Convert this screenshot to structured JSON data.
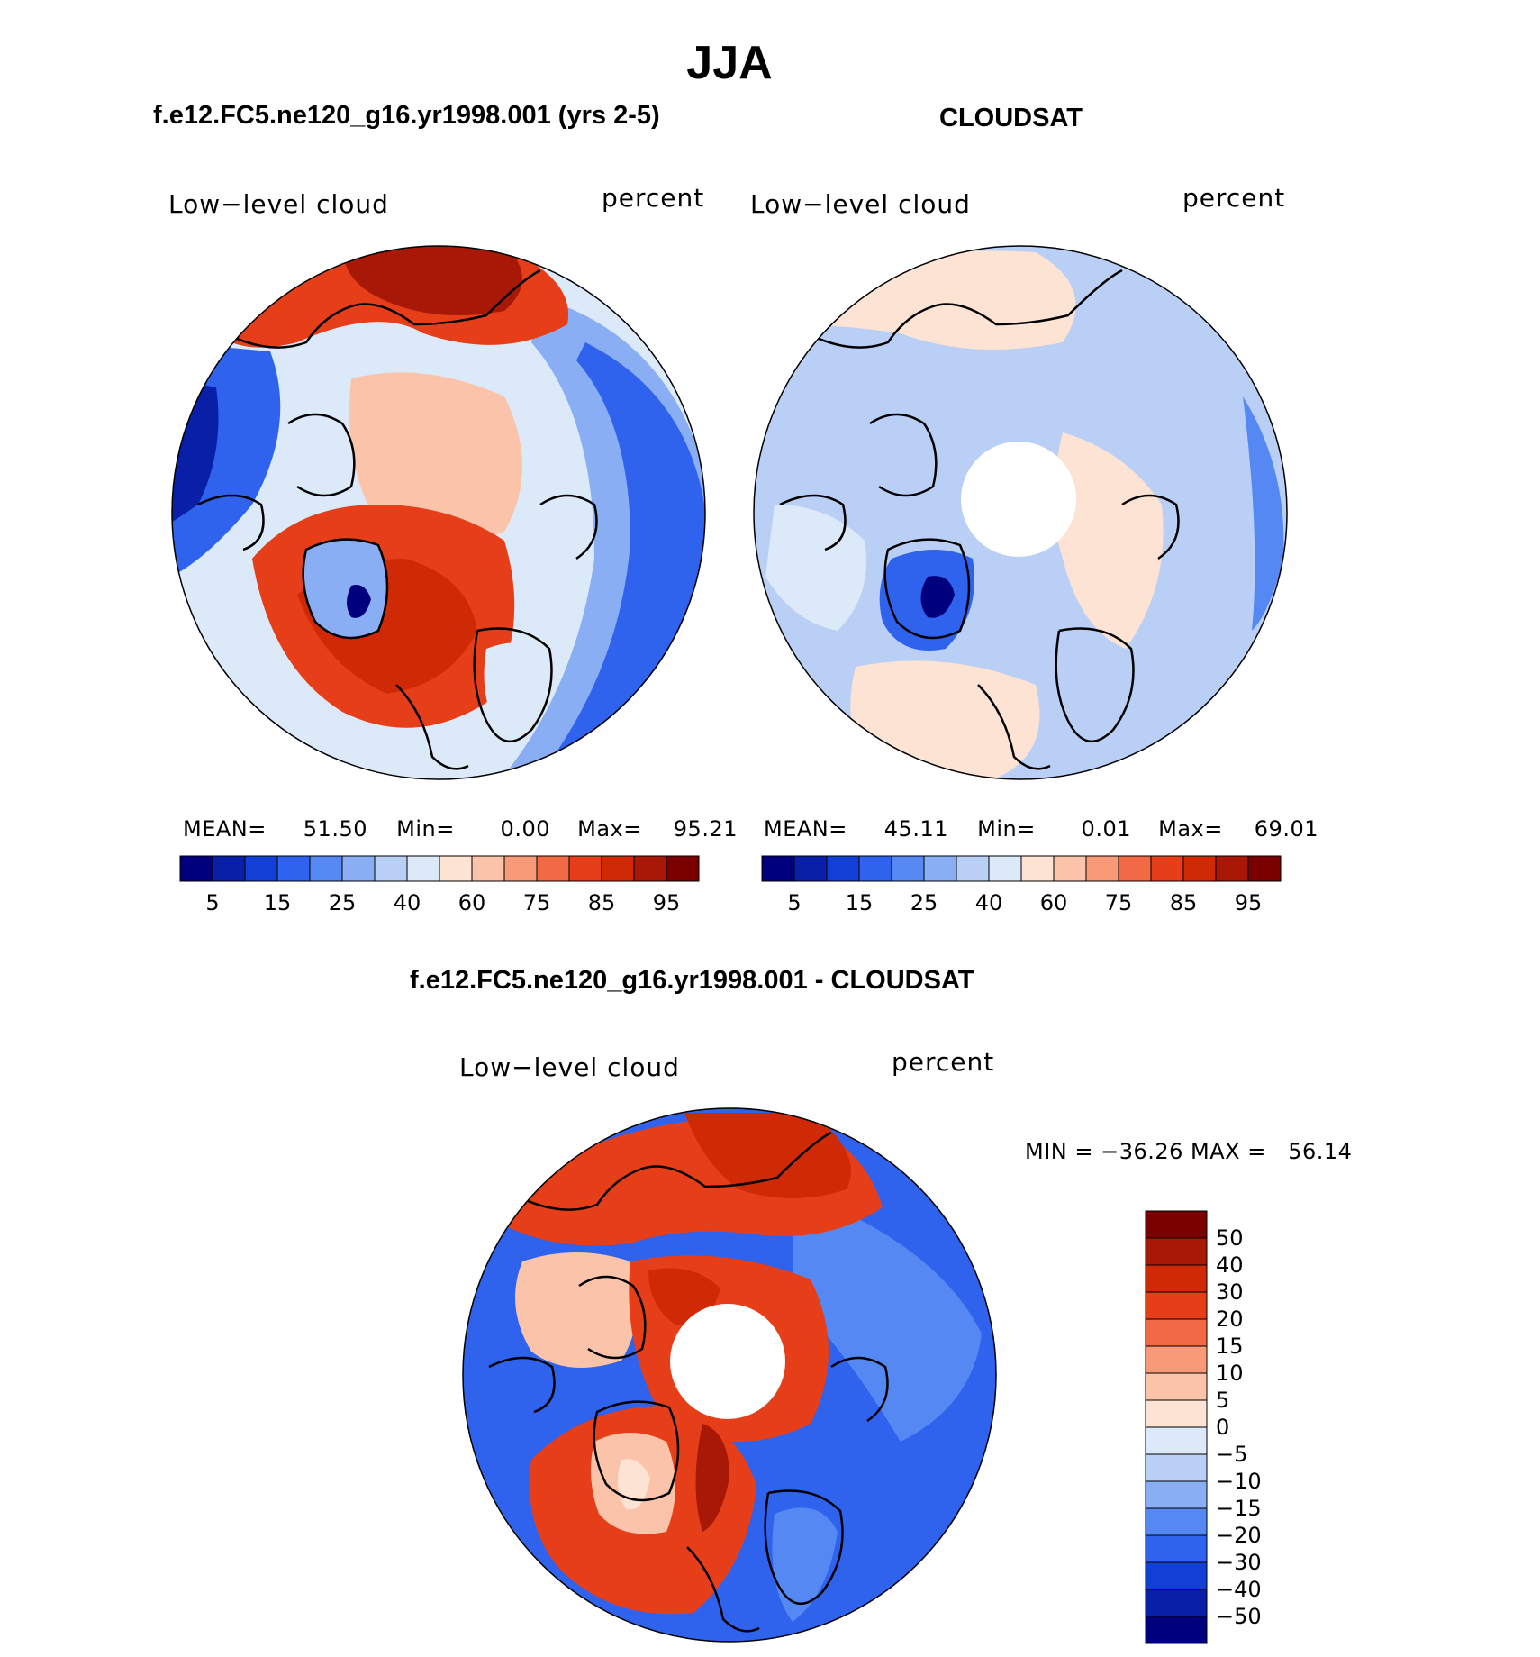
{
  "page_title": "JJA",
  "colors": {
    "model_scale": [
      "#00007f",
      "#0a1fa8",
      "#1340d4",
      "#2f63ee",
      "#5588f2",
      "#8aaef4",
      "#b9cff5",
      "#dce9f8",
      "#fde3d3",
      "#fbc3aa",
      "#f89a77",
      "#f26a45",
      "#e63e18",
      "#cf2a05",
      "#a81806",
      "#7a0000"
    ],
    "diff_scale": [
      "#00007f",
      "#0a1fa8",
      "#1340d4",
      "#2f63ee",
      "#5588f2",
      "#8aaef4",
      "#b9cff5",
      "#dce9f8",
      "#fde3d3",
      "#fbc3aa",
      "#f89a77",
      "#f26a45",
      "#e63e18",
      "#cf2a05",
      "#a81806",
      "#7a0000"
    ],
    "coastline": "#000000"
  },
  "panels": [
    {
      "title": "f.e12.FC5.ne120_g16.yr1998.001 (yrs 2-5)",
      "variable_label": "Low−level cloud",
      "units_label": "percent",
      "stats": {
        "mean_label": "MEAN=",
        "mean": "51.50",
        "min_label": "Min=",
        "min": "0.00",
        "max_label": "Max=",
        "max": "95.21"
      },
      "colorbar_ticks": [
        "5",
        "15",
        "25",
        "40",
        "60",
        "75",
        "85",
        "95"
      ]
    },
    {
      "title": "CLOUDSAT",
      "variable_label": "Low−level cloud",
      "units_label": "percent",
      "stats": {
        "mean_label": "MEAN=",
        "mean": "45.11",
        "min_label": "Min=",
        "min": "0.01",
        "max_label": "Max=",
        "max": "69.01"
      },
      "colorbar_ticks": [
        "5",
        "15",
        "25",
        "40",
        "60",
        "75",
        "85",
        "95"
      ]
    },
    {
      "title": "f.e12.FC5.ne120_g16.yr1998.001 - CLOUDSAT",
      "variable_label": "Low−level cloud",
      "units_label": "percent",
      "stats_text": "MIN = −36.26 MAX =   56.14",
      "colorbar_ticks": [
        "50",
        "40",
        "30",
        "20",
        "15",
        "10",
        "5",
        "0",
        "−5",
        "−10",
        "−15",
        "−20",
        "−30",
        "−40",
        "−50"
      ]
    }
  ]
}
